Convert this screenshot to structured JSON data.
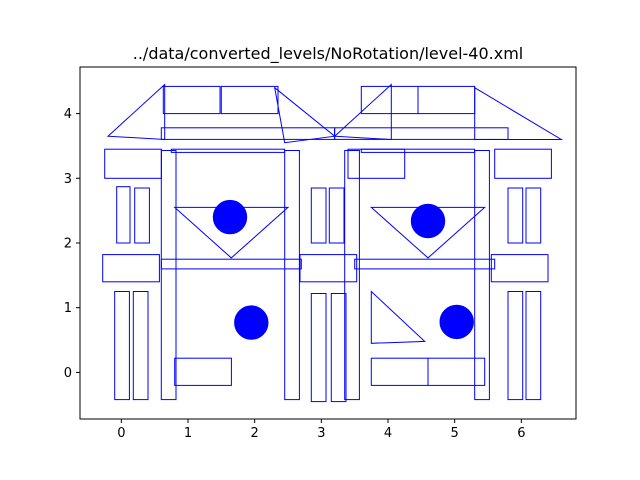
{
  "chart_data": {
    "type": "diagram",
    "title": "../data/converted_levels/NoRotation/level-40.xml",
    "xlabel": "",
    "ylabel": "",
    "xlim": [
      -0.62,
      6.82
    ],
    "ylim": [
      -0.72,
      4.72
    ],
    "xticks": [
      0,
      1,
      2,
      3,
      4,
      5,
      6
    ],
    "yticks": [
      0,
      1,
      2,
      3,
      4
    ],
    "grid": false,
    "colors": {
      "stroke": "#0000ff",
      "fill": "#0000ff",
      "axes": "#000000"
    },
    "rectangles": [
      [
        0.63,
        4.0,
        0.85,
        0.42
      ],
      [
        1.5,
        4.0,
        0.85,
        0.42
      ],
      [
        0.6,
        3.6,
        2.6,
        0.18
      ],
      [
        -0.25,
        3.0,
        0.85,
        0.45
      ],
      [
        0.6,
        -0.42,
        0.22,
        3.85
      ],
      [
        2.45,
        -0.42,
        0.22,
        3.85
      ],
      [
        0.75,
        3.4,
        1.7,
        0.05
      ],
      [
        -0.07,
        2.0,
        0.2,
        0.87
      ],
      [
        0.2,
        2.0,
        0.22,
        0.85
      ],
      [
        -0.28,
        1.4,
        0.85,
        0.42
      ],
      [
        0.6,
        1.6,
        2.1,
        0.15
      ],
      [
        -0.1,
        -0.42,
        0.22,
        1.67
      ],
      [
        0.18,
        -0.42,
        0.22,
        1.67
      ],
      [
        0.8,
        -0.2,
        0.85,
        0.42
      ],
      [
        3.4,
        3.0,
        0.85,
        0.45
      ],
      [
        3.35,
        -0.42,
        0.22,
        3.85
      ],
      [
        5.3,
        -0.42,
        0.22,
        3.85
      ],
      [
        3.6,
        3.4,
        1.7,
        0.05
      ],
      [
        2.85,
        2.0,
        0.22,
        0.85
      ],
      [
        3.12,
        2.0,
        0.22,
        0.85
      ],
      [
        2.68,
        1.4,
        0.85,
        0.42
      ],
      [
        3.5,
        1.6,
        2.1,
        0.15
      ],
      [
        2.85,
        -0.45,
        0.22,
        1.67
      ],
      [
        3.15,
        -0.45,
        0.22,
        1.67
      ],
      [
        3.75,
        -0.2,
        0.85,
        0.42
      ],
      [
        4.6,
        -0.2,
        0.85,
        0.42
      ],
      [
        3.6,
        4.0,
        0.85,
        0.42
      ],
      [
        4.45,
        4.0,
        0.85,
        0.42
      ],
      [
        3.2,
        3.6,
        2.6,
        0.18
      ],
      [
        5.6,
        3.0,
        0.85,
        0.45
      ],
      [
        5.8,
        2.0,
        0.22,
        0.85
      ],
      [
        6.07,
        2.0,
        0.22,
        0.85
      ],
      [
        5.55,
        1.4,
        0.85,
        0.42
      ],
      [
        5.8,
        -0.42,
        0.22,
        1.67
      ],
      [
        6.07,
        -0.42,
        0.22,
        1.67
      ]
    ],
    "triangles": [
      [
        [
          -0.2,
          3.65
        ],
        [
          0.65,
          4.45
        ],
        [
          0.65,
          3.6
        ]
      ],
      [
        [
          2.3,
          4.4
        ],
        [
          3.2,
          3.65
        ],
        [
          2.45,
          3.55
        ]
      ],
      [
        [
          0.8,
          2.55
        ],
        [
          1.65,
          1.77
        ],
        [
          2.5,
          2.55
        ]
      ],
      [
        [
          3.2,
          3.65
        ],
        [
          4.05,
          4.45
        ],
        [
          4.05,
          3.6
        ]
      ],
      [
        [
          5.3,
          4.4
        ],
        [
          6.6,
          3.6
        ],
        [
          5.3,
          3.6
        ]
      ],
      [
        [
          3.75,
          2.55
        ],
        [
          4.6,
          1.77
        ],
        [
          5.45,
          2.55
        ]
      ],
      [
        [
          3.75,
          1.25
        ],
        [
          4.55,
          0.48
        ],
        [
          3.75,
          0.45
        ]
      ]
    ],
    "circles": [
      [
        1.63,
        2.4,
        0.25
      ],
      [
        1.95,
        0.77,
        0.25
      ],
      [
        4.6,
        2.34,
        0.25
      ],
      [
        5.03,
        0.78,
        0.25
      ]
    ]
  }
}
